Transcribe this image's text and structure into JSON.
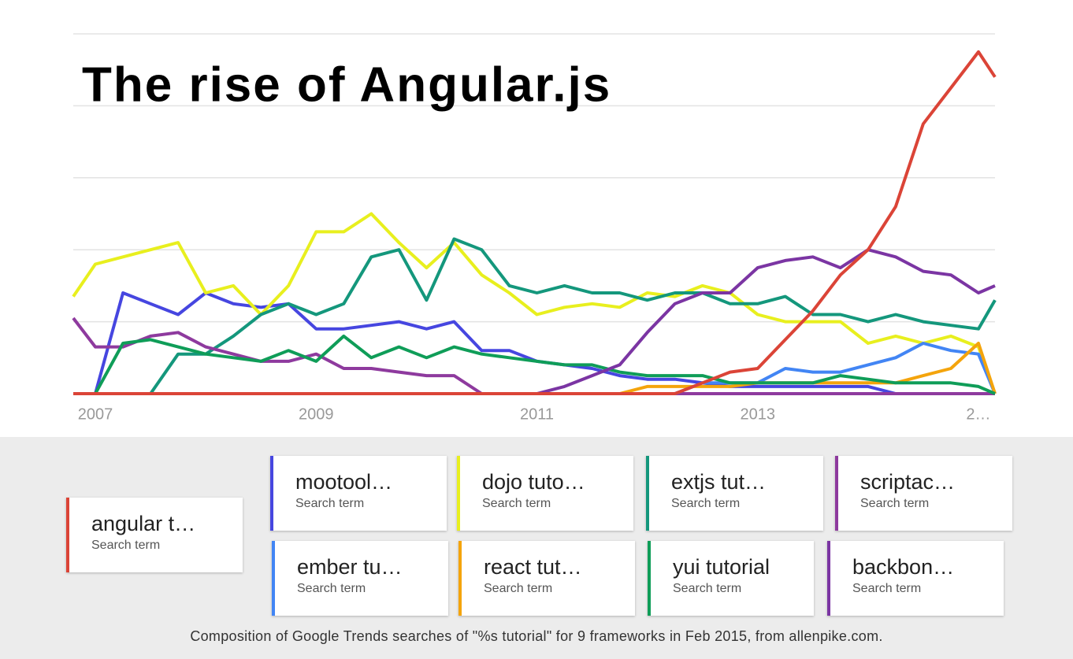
{
  "chart_data": {
    "type": "line",
    "title": "The rise of Angular.js",
    "caption": "Composition of Google Trends searches of \"%s tutorial\" for 9 frameworks in Feb 2015, from allenpike.com.",
    "legend_caption": "Search term",
    "x": [
      2006.8,
      2007,
      2007.25,
      2007.5,
      2007.75,
      2008,
      2008.25,
      2008.5,
      2008.75,
      2009,
      2009.25,
      2009.5,
      2009.75,
      2010,
      2010.25,
      2010.5,
      2010.75,
      2011,
      2011.25,
      2011.5,
      2011.75,
      2012,
      2012.25,
      2012.5,
      2012.75,
      2013,
      2013.25,
      2013.5,
      2013.75,
      2014,
      2014.25,
      2014.5,
      2014.75,
      2015,
      2015.15
    ],
    "xlim": [
      2006.8,
      2015.15
    ],
    "xticks": [
      2007,
      2009,
      2011,
      2013,
      {
        "value": 2015,
        "label": "2…"
      }
    ],
    "ylim": [
      0,
      100
    ],
    "yticks": [
      0,
      20,
      40,
      60,
      80,
      100
    ],
    "grid": true,
    "series": [
      {
        "name": "angular t…",
        "color": "#db4437",
        "values": [
          0,
          0,
          0,
          0,
          0,
          0,
          0,
          0,
          0,
          0,
          0,
          0,
          0,
          0,
          0,
          0,
          0,
          0,
          0,
          0,
          0,
          0,
          0,
          3,
          6,
          7,
          15,
          23,
          33,
          40,
          52,
          75,
          85,
          95,
          88
        ]
      },
      {
        "name": "mootool…",
        "color": "#4646e0",
        "values": [
          0,
          0,
          28,
          25,
          22,
          28,
          25,
          24,
          25,
          18,
          18,
          19,
          20,
          18,
          20,
          12,
          12,
          9,
          8,
          7,
          5,
          4,
          4,
          3,
          2,
          2,
          2,
          2,
          2,
          2,
          0,
          0,
          0,
          0,
          0
        ]
      },
      {
        "name": "dojo tuto…",
        "color": "#e8ef1e",
        "values": [
          27,
          36,
          38,
          40,
          42,
          28,
          30,
          22,
          30,
          45,
          45,
          50,
          42,
          35,
          42,
          33,
          28,
          22,
          24,
          25,
          24,
          28,
          27,
          30,
          28,
          22,
          20,
          20,
          20,
          14,
          16,
          14,
          16,
          13,
          0
        ]
      },
      {
        "name": "extjs tut…",
        "color": "#14977c",
        "values": [
          0,
          0,
          0,
          0,
          11,
          11,
          16,
          22,
          25,
          22,
          25,
          38,
          40,
          26,
          43,
          40,
          30,
          28,
          30,
          28,
          28,
          26,
          28,
          28,
          25,
          25,
          27,
          22,
          22,
          20,
          22,
          20,
          19,
          18,
          26
        ]
      },
      {
        "name": "scriptac…",
        "color": "#8e3a9e",
        "values": [
          21,
          13,
          13,
          16,
          17,
          13,
          11,
          9,
          9,
          11,
          7,
          7,
          6,
          5,
          5,
          0,
          0,
          0,
          0,
          0,
          0,
          0,
          0,
          0,
          0,
          0,
          0,
          0,
          0,
          0,
          0,
          0,
          0,
          0,
          0
        ]
      },
      {
        "name": "ember tu…",
        "color": "#4285f4",
        "values": [
          0,
          0,
          0,
          0,
          0,
          0,
          0,
          0,
          0,
          0,
          0,
          0,
          0,
          0,
          0,
          0,
          0,
          0,
          0,
          0,
          0,
          0,
          0,
          3,
          3,
          3,
          7,
          6,
          6,
          8,
          10,
          14,
          12,
          11,
          0
        ]
      },
      {
        "name": "react tut…",
        "color": "#f4a40c",
        "values": [
          0,
          0,
          0,
          0,
          0,
          0,
          0,
          0,
          0,
          0,
          0,
          0,
          0,
          0,
          0,
          0,
          0,
          0,
          0,
          0,
          0,
          2,
          2,
          2,
          2,
          3,
          3,
          3,
          3,
          3,
          3,
          5,
          7,
          14,
          0
        ]
      },
      {
        "name": "yui tutorial",
        "color": "#0f9d58",
        "values": [
          0,
          0,
          14,
          15,
          13,
          11,
          10,
          9,
          12,
          9,
          16,
          10,
          13,
          10,
          13,
          11,
          10,
          9,
          8,
          8,
          6,
          5,
          5,
          5,
          3,
          3,
          3,
          3,
          5,
          4,
          3,
          3,
          3,
          2,
          0
        ]
      },
      {
        "name": "backbon…",
        "color": "#7b35a3",
        "values": [
          0,
          0,
          0,
          0,
          0,
          0,
          0,
          0,
          0,
          0,
          0,
          0,
          0,
          0,
          0,
          0,
          0,
          0,
          2,
          5,
          8,
          17,
          25,
          28,
          28,
          35,
          37,
          38,
          35,
          40,
          38,
          34,
          33,
          28,
          30
        ]
      }
    ]
  }
}
